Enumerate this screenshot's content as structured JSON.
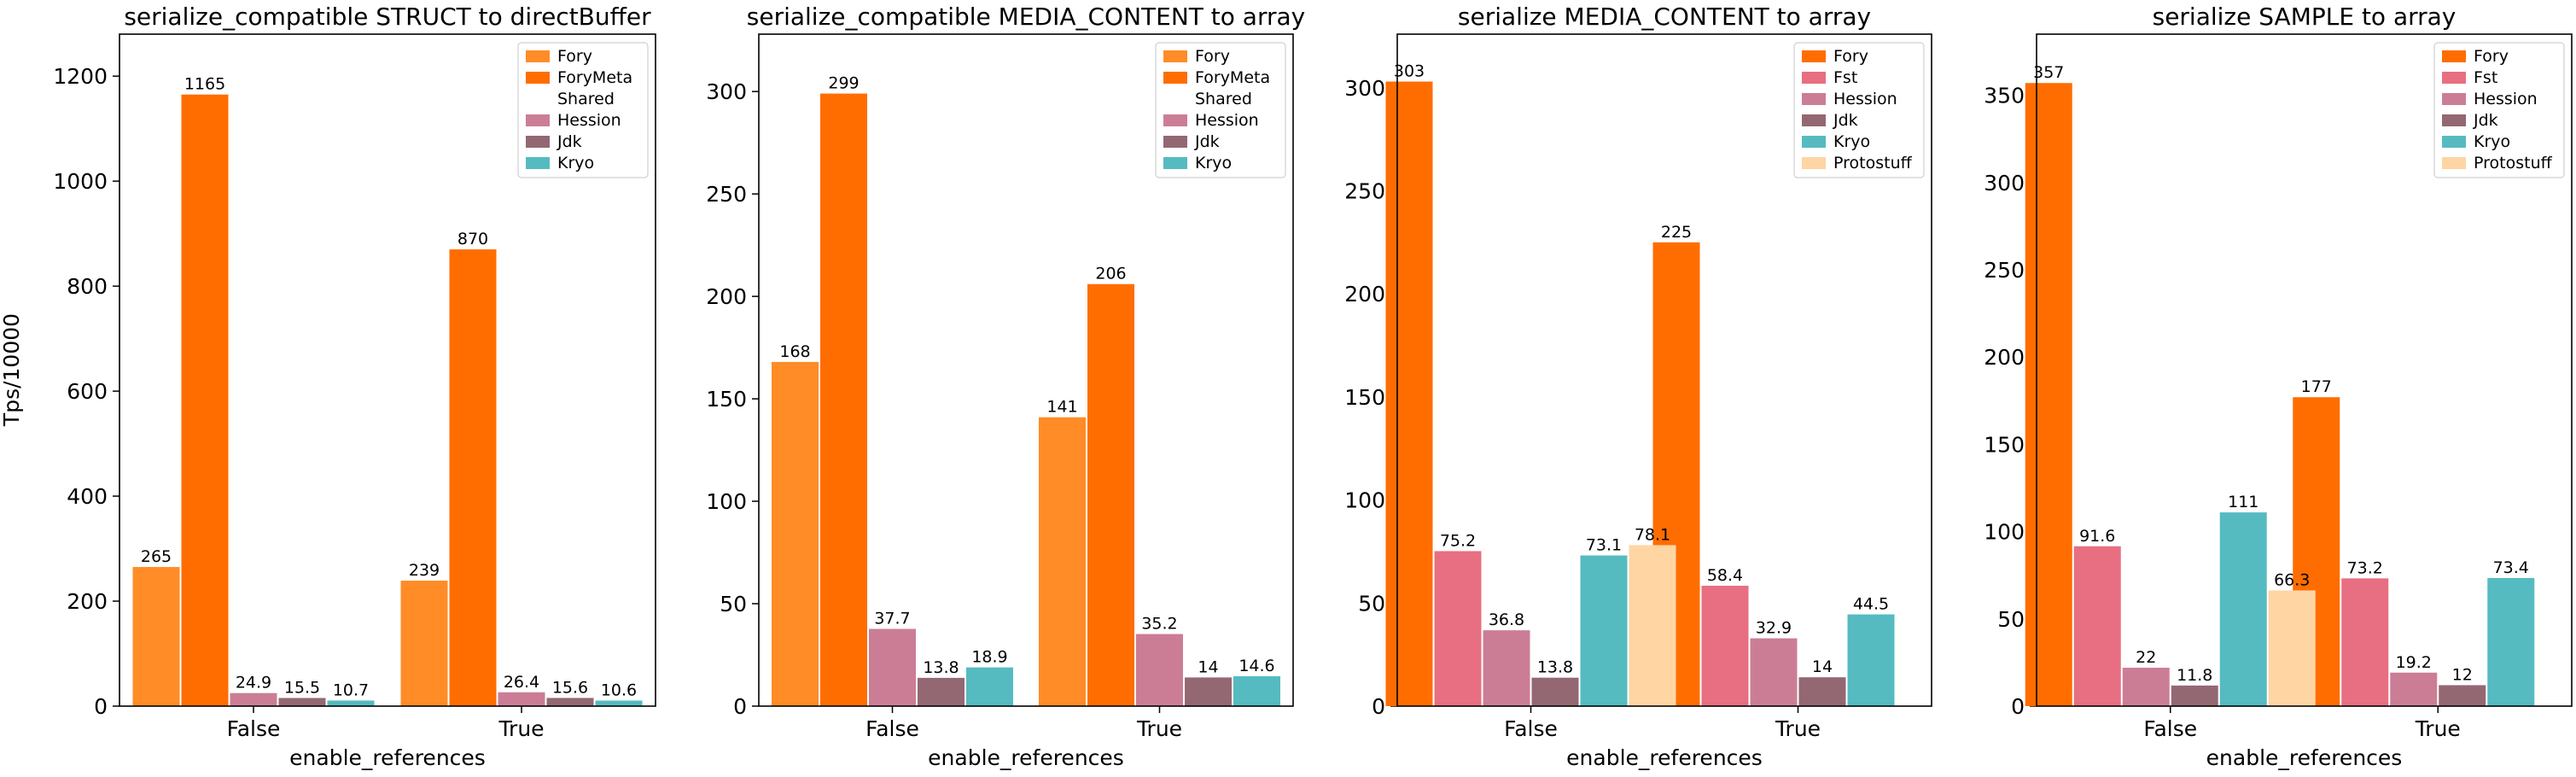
{
  "figure": {
    "ylabel": "Tps/10000"
  },
  "chart_data": [
    {
      "type": "bar",
      "title": "serialize_compatible STRUCT to directBuffer",
      "xlabel": "enable_references",
      "ylabel": "Tps/10000",
      "categories": [
        "False",
        "True"
      ],
      "ylim": [
        0,
        1280
      ],
      "yticks": [
        0,
        200,
        400,
        600,
        800,
        1000,
        1200
      ],
      "grid": false,
      "legend_position": "top-right",
      "series": [
        {
          "name": "Fory",
          "legend_lines": [
            "Fory"
          ],
          "color": "#ff8c26",
          "values": [
            265,
            239
          ],
          "labels": [
            "265",
            "239"
          ]
        },
        {
          "name": "ForyMeta Shared",
          "legend_lines": [
            "ForyMeta",
            "Shared"
          ],
          "color": "#ff6d00",
          "values": [
            1165,
            870
          ],
          "labels": [
            "1165",
            "870"
          ]
        },
        {
          "name": "Hession",
          "legend_lines": [
            "Hession"
          ],
          "color": "#cc7d96",
          "values": [
            24.9,
            26.4
          ],
          "labels": [
            "24.9",
            "26.4"
          ]
        },
        {
          "name": "Jdk",
          "legend_lines": [
            "Jdk"
          ],
          "color": "#936872",
          "values": [
            15.5,
            15.6
          ],
          "labels": [
            "15.5",
            "15.6"
          ]
        },
        {
          "name": "Kryo",
          "legend_lines": [
            "Kryo"
          ],
          "color": "#55bbc1",
          "values": [
            10.7,
            10.6
          ],
          "labels": [
            "10.7",
            "10.6"
          ]
        }
      ]
    },
    {
      "type": "bar",
      "title": "serialize_compatible MEDIA_CONTENT to array",
      "xlabel": "enable_references",
      "categories": [
        "False",
        "True"
      ],
      "ylim": [
        0,
        328
      ],
      "yticks": [
        0,
        50,
        100,
        150,
        200,
        250,
        300
      ],
      "grid": false,
      "legend_position": "top-right",
      "series": [
        {
          "name": "Fory",
          "legend_lines": [
            "Fory"
          ],
          "color": "#ff8c26",
          "values": [
            168,
            141
          ],
          "labels": [
            "168",
            "141"
          ]
        },
        {
          "name": "ForyMeta Shared",
          "legend_lines": [
            "ForyMeta",
            "Shared"
          ],
          "color": "#ff6d00",
          "values": [
            299,
            206
          ],
          "labels": [
            "299",
            "206"
          ]
        },
        {
          "name": "Hession",
          "legend_lines": [
            "Hession"
          ],
          "color": "#cc7d96",
          "values": [
            37.7,
            35.2
          ],
          "labels": [
            "37.7",
            "35.2"
          ]
        },
        {
          "name": "Jdk",
          "legend_lines": [
            "Jdk"
          ],
          "color": "#936872",
          "values": [
            13.8,
            14
          ],
          "labels": [
            "13.8",
            "14"
          ]
        },
        {
          "name": "Kryo",
          "legend_lines": [
            "Kryo"
          ],
          "color": "#55bbc1",
          "values": [
            18.9,
            14.6
          ],
          "labels": [
            "18.9",
            "14.6"
          ]
        }
      ]
    },
    {
      "type": "bar",
      "title": "serialize MEDIA_CONTENT to array",
      "xlabel": "enable_references",
      "categories": [
        "False",
        "True"
      ],
      "ylim": [
        0,
        326
      ],
      "yticks": [
        0,
        50,
        100,
        150,
        200,
        250,
        300
      ],
      "grid": false,
      "legend_position": "top-right",
      "series": [
        {
          "name": "Fory",
          "legend_lines": [
            "Fory"
          ],
          "color": "#ff6d00",
          "values": [
            303,
            225
          ],
          "labels": [
            "303",
            "225"
          ]
        },
        {
          "name": "Fst",
          "legend_lines": [
            "Fst"
          ],
          "color": "#e76f81",
          "values": [
            75.2,
            58.4
          ],
          "labels": [
            "75.2",
            "58.4"
          ]
        },
        {
          "name": "Hession",
          "legend_lines": [
            "Hession"
          ],
          "color": "#cc7d96",
          "values": [
            36.8,
            32.9
          ],
          "labels": [
            "36.8",
            "32.9"
          ]
        },
        {
          "name": "Jdk",
          "legend_lines": [
            "Jdk"
          ],
          "color": "#936872",
          "values": [
            13.8,
            14
          ],
          "labels": [
            "13.8",
            "14"
          ]
        },
        {
          "name": "Kryo",
          "legend_lines": [
            "Kryo"
          ],
          "color": "#55bbc1",
          "values": [
            73.1,
            44.5
          ],
          "labels": [
            "73.1",
            "44.5"
          ]
        },
        {
          "name": "Protostuff",
          "legend_lines": [
            "Protostuff"
          ],
          "color": "#ffd5a3",
          "values": [
            78.1,
            null
          ],
          "labels": [
            "78.1",
            null
          ]
        }
      ]
    },
    {
      "type": "bar",
      "title": "serialize SAMPLE to array",
      "xlabel": "enable_references",
      "categories": [
        "False",
        "True"
      ],
      "ylim": [
        0,
        385
      ],
      "yticks": [
        0,
        50,
        100,
        150,
        200,
        250,
        300,
        350
      ],
      "grid": false,
      "legend_position": "top-right",
      "series": [
        {
          "name": "Fory",
          "legend_lines": [
            "Fory"
          ],
          "color": "#ff6d00",
          "values": [
            357,
            177
          ],
          "labels": [
            "357",
            "177"
          ]
        },
        {
          "name": "Fst",
          "legend_lines": [
            "Fst"
          ],
          "color": "#e76f81",
          "values": [
            91.6,
            73.2
          ],
          "labels": [
            "91.6",
            "73.2"
          ]
        },
        {
          "name": "Hession",
          "legend_lines": [
            "Hession"
          ],
          "color": "#cc7d96",
          "values": [
            22,
            19.2
          ],
          "labels": [
            "22",
            "19.2"
          ]
        },
        {
          "name": "Jdk",
          "legend_lines": [
            "Jdk"
          ],
          "color": "#936872",
          "values": [
            11.8,
            12
          ],
          "labels": [
            "11.8",
            "12"
          ]
        },
        {
          "name": "Kryo",
          "legend_lines": [
            "Kryo"
          ],
          "color": "#55bbc1",
          "values": [
            111,
            73.4
          ],
          "labels": [
            "111",
            "73.4"
          ]
        },
        {
          "name": "Protostuff",
          "legend_lines": [
            "Protostuff"
          ],
          "color": "#ffd5a3",
          "values": [
            66.3,
            null
          ],
          "labels": [
            "66.3",
            null
          ]
        }
      ]
    }
  ]
}
